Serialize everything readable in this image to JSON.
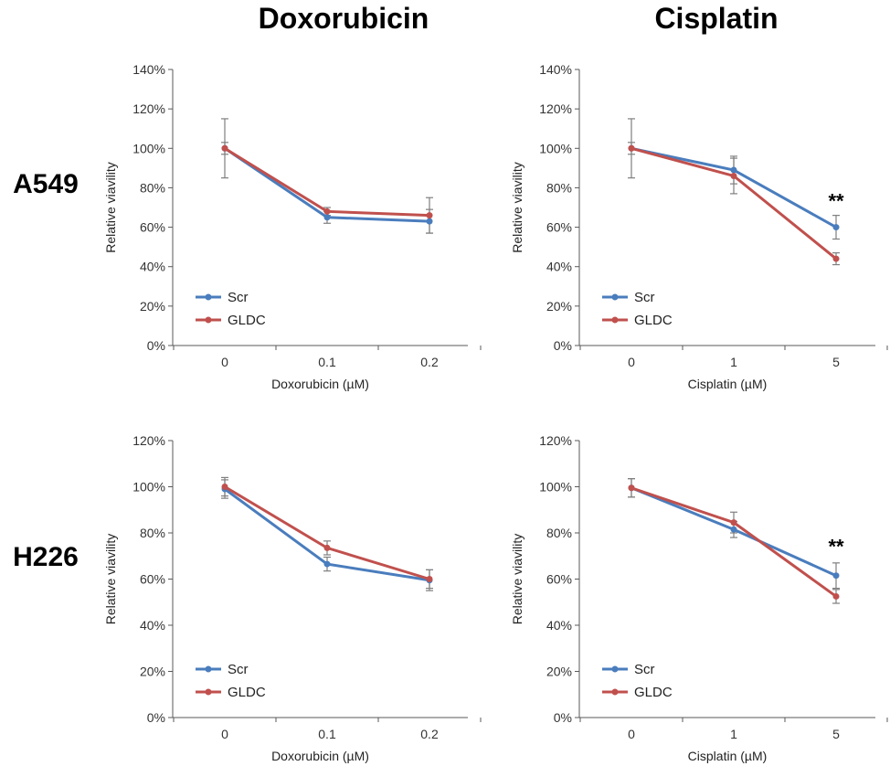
{
  "columns": [
    "Doxorubicin",
    "Cisplatin"
  ],
  "rows": [
    "A549",
    "H226"
  ],
  "colors": {
    "Scr": "#4a7dbd",
    "GLDC": "#c0504d",
    "error": "#7f7f7f",
    "axis": "#595959"
  },
  "chart_data": [
    {
      "type": "line",
      "id": "a549-doxorubicin",
      "categories": [
        "0",
        "0.1",
        "0.2"
      ],
      "xlabel": "Doxorubicin (µM)",
      "ylabel": "Relative viavility",
      "ylim": [
        0,
        140
      ],
      "yticks": [
        "0%",
        "20%",
        "40%",
        "60%",
        "80%",
        "100%",
        "120%",
        "140%"
      ],
      "legend": "bottom-left",
      "series": [
        {
          "name": "Scr",
          "values": [
            100,
            65,
            63
          ],
          "errors": [
            15,
            3,
            6
          ]
        },
        {
          "name": "GLDC",
          "values": [
            100,
            68,
            66
          ],
          "errors": [
            3,
            2,
            9
          ]
        }
      ],
      "significance": []
    },
    {
      "type": "line",
      "id": "a549-cisplatin",
      "categories": [
        "0",
        "1",
        "5"
      ],
      "xlabel": "Cisplatin (µM)",
      "ylabel": "Relative viavility",
      "ylim": [
        0,
        140
      ],
      "yticks": [
        "0%",
        "20%",
        "40%",
        "60%",
        "80%",
        "100%",
        "120%",
        "140%"
      ],
      "legend": "bottom-left",
      "series": [
        {
          "name": "Scr",
          "values": [
            100,
            89,
            60
          ],
          "errors": [
            15,
            7,
            6
          ]
        },
        {
          "name": "GLDC",
          "values": [
            100,
            86,
            44
          ],
          "errors": [
            3,
            9,
            3
          ]
        }
      ],
      "significance": [
        {
          "index": 2,
          "label": "**",
          "above": 66
        }
      ]
    },
    {
      "type": "line",
      "id": "h226-doxorubicin",
      "categories": [
        "0",
        "0.1",
        "0.2"
      ],
      "xlabel": "Doxorubicin (µM)",
      "ylabel": "Relative viavility",
      "ylim": [
        0,
        120
      ],
      "yticks": [
        "0%",
        "20%",
        "40%",
        "60%",
        "80%",
        "100%",
        "120%"
      ],
      "legend": "bottom-left",
      "series": [
        {
          "name": "Scr",
          "values": [
            99,
            66.5,
            59.5
          ],
          "errors": [
            4,
            3,
            4.5
          ]
        },
        {
          "name": "GLDC",
          "values": [
            100,
            73.5,
            60
          ],
          "errors": [
            4,
            3,
            4
          ]
        }
      ],
      "significance": []
    },
    {
      "type": "line",
      "id": "h226-cisplatin",
      "categories": [
        "0",
        "1",
        "5"
      ],
      "xlabel": "Cisplatin (µM)",
      "ylabel": "Relative viavility",
      "ylim": [
        0,
        120
      ],
      "yticks": [
        "0%",
        "20%",
        "40%",
        "60%",
        "80%",
        "100%",
        "120%"
      ],
      "legend": "bottom-left",
      "series": [
        {
          "name": "Scr",
          "values": [
            99.5,
            81.5,
            61.5
          ],
          "errors": [
            4,
            3.5,
            5.5
          ]
        },
        {
          "name": "GLDC",
          "values": [
            99.5,
            84.5,
            52.5
          ],
          "errors": [
            4,
            4.5,
            3
          ]
        }
      ],
      "significance": [
        {
          "index": 2,
          "label": "**",
          "above": 68
        }
      ]
    }
  ]
}
